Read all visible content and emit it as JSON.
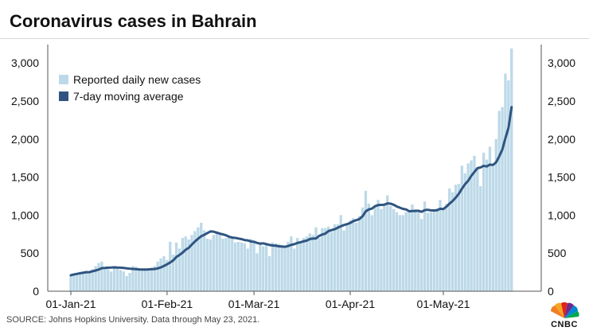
{
  "page": {
    "title": "Coronavirus cases in Bahrain",
    "source": "SOURCE: Johns Hopkins University. Data through May 23, 2021.",
    "logo_text": "CNBC"
  },
  "colors": {
    "bar": "#bcd9e8",
    "line": "#2f5480",
    "axis": "#555555",
    "text": "#111111"
  },
  "chart_data": {
    "type": "bar",
    "title": "Coronavirus cases in Bahrain",
    "xlabel": "",
    "ylabel": "",
    "ylim": [
      0,
      3200
    ],
    "y_ticks": [
      0,
      500,
      1000,
      1500,
      2000,
      2500,
      3000
    ],
    "y_tick_labels": [
      "0",
      "500",
      "1,000",
      "1,500",
      "2,000",
      "2,500",
      "3,000"
    ],
    "x_tick_labels": [
      {
        "label": "01-Jan-21",
        "day": 0
      },
      {
        "label": "01-Feb-21",
        "day": 31
      },
      {
        "label": "01-Mar-21",
        "day": 59
      },
      {
        "label": "01-Apr-21",
        "day": 90
      },
      {
        "label": "01-May-21",
        "day": 120
      }
    ],
    "grid": false,
    "legend": {
      "position": "top-left",
      "entries": [
        {
          "label": "Reported daily new cases",
          "kind": "bar"
        },
        {
          "label": "7-day moving average",
          "kind": "line"
        }
      ]
    },
    "start_date": "2021-01-01",
    "end_date": "2021-05-23",
    "series": [
      {
        "name": "Reported daily new cases",
        "type": "bar",
        "values": [
          210,
          230,
          240,
          255,
          260,
          270,
          250,
          290,
          330,
          370,
          390,
          300,
          290,
          260,
          330,
          310,
          280,
          260,
          200,
          240,
          330,
          320,
          300,
          270,
          290,
          300,
          280,
          330,
          390,
          430,
          460,
          410,
          650,
          480,
          640,
          560,
          700,
          720,
          680,
          740,
          790,
          840,
          900,
          800,
          690,
          680,
          740,
          790,
          750,
          690,
          700,
          710,
          700,
          640,
          650,
          640,
          630,
          560,
          690,
          650,
          500,
          620,
          590,
          610,
          460,
          640,
          630,
          620,
          610,
          580,
          650,
          720,
          560,
          700,
          650,
          700,
          720,
          760,
          740,
          840,
          700,
          830,
          830,
          850,
          780,
          880,
          880,
          1000,
          800,
          870,
          930,
          960,
          900,
          990,
          1100,
          1320,
          1150,
          1000,
          1120,
          1200,
          1080,
          1150,
          1260,
          1120,
          1080,
          1040,
          1000,
          1000,
          1040,
          1050,
          1140,
          1080,
          1040,
          950,
          1180,
          1030,
          1040,
          1060,
          1090,
          1200,
          1080,
          1150,
          1350,
          1300,
          1400,
          1410,
          1650,
          1550,
          1680,
          1720,
          1780,
          1600,
          1380,
          1820,
          1730,
          1900,
          1640,
          2000,
          2370,
          2420,
          2860,
          2770,
          3190
        ]
      },
      {
        "name": "7-day moving average",
        "type": "line",
        "values": [
          210,
          220,
          228,
          236,
          243,
          250,
          251,
          262,
          272,
          285,
          303,
          306,
          310,
          311,
          314,
          311,
          310,
          306,
          301,
          296,
          293,
          290,
          286,
          285,
          285,
          286,
          290,
          291,
          300,
          313,
          332,
          354,
          377,
          405,
          450,
          476,
          507,
          545,
          570,
          614,
          654,
          690,
          722,
          742,
          764,
          786,
          783,
          769,
          757,
          747,
          735,
          716,
          705,
          701,
          692,
          685,
          672,
          668,
          654,
          650,
          635,
          626,
          629,
          619,
          608,
          601,
          599,
          591,
          587,
          584,
          594,
          609,
          618,
          634,
          644,
          656,
          665,
          686,
          691,
          694,
          727,
          745,
          758,
          790,
          803,
          815,
          834,
          854,
          870,
          882,
          897,
          921,
          934,
          949,
          985,
          1049,
          1075,
          1086,
          1117,
          1132,
          1134,
          1137,
          1154,
          1151,
          1137,
          1114,
          1098,
          1082,
          1075,
          1051,
          1053,
          1055,
          1057,
          1044,
          1066,
          1070,
          1063,
          1061,
          1064,
          1084,
          1080,
          1111,
          1151,
          1186,
          1230,
          1281,
          1347,
          1406,
          1451,
          1515,
          1567,
          1617,
          1627,
          1648,
          1640,
          1664,
          1659,
          1694,
          1771,
          1860,
          2010,
          2147,
          2420
        ]
      }
    ]
  }
}
